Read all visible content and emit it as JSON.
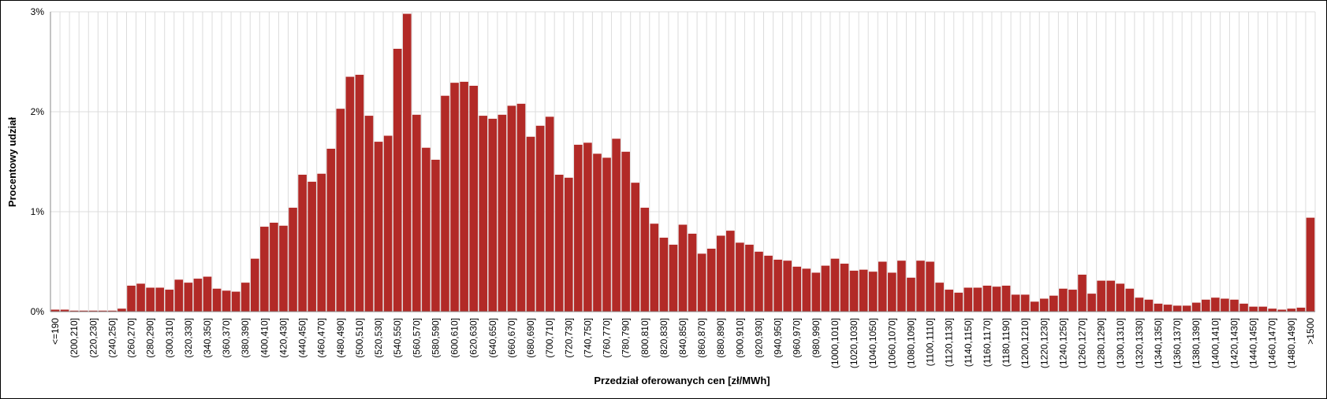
{
  "chart_data": {
    "type": "bar",
    "x_label": "Przedział oferowanych cen [zł/MWh]",
    "y_label": "Procentowy udział",
    "color": "#b22a27",
    "grid": true,
    "ylim": [
      0,
      3
    ],
    "yticks": [
      {
        "value": 0,
        "label": "0%"
      },
      {
        "value": 1,
        "label": "1%"
      },
      {
        "value": 2,
        "label": "2%"
      },
      {
        "value": 3,
        "label": "3%"
      }
    ],
    "categories": [
      "<=190",
      null,
      "(200,210]",
      null,
      "(220,230]",
      null,
      "(240,250]",
      null,
      "(260,270]",
      null,
      "(280,290]",
      null,
      "(300,310]",
      null,
      "(320,330]",
      null,
      "(340,350]",
      null,
      "(360,370]",
      null,
      "(380,390]",
      null,
      "(400,410]",
      null,
      "(420,430]",
      null,
      "(440,450]",
      null,
      "(460,470]",
      null,
      "(480,490]",
      null,
      "(500,510]",
      null,
      "(520,530]",
      null,
      "(540,550]",
      null,
      "(560,570]",
      null,
      "(580,590]",
      null,
      "(600,610]",
      null,
      "(620,630]",
      null,
      "(640,650]",
      null,
      "(660,670]",
      null,
      "(680,690]",
      null,
      "(700,710]",
      null,
      "(720,730]",
      null,
      "(740,750]",
      null,
      "(760,770]",
      null,
      "(780,790]",
      null,
      "(800,810]",
      null,
      "(820,830]",
      null,
      "(840,850]",
      null,
      "(860,870]",
      null,
      "(880,890]",
      null,
      "(900,910]",
      null,
      "(920,930]",
      null,
      "(940,950]",
      null,
      "(960,970]",
      null,
      "(980,990]",
      null,
      "(1000,1010]",
      null,
      "(1020,1030]",
      null,
      "(1040,1050]",
      null,
      "(1060,1070]",
      null,
      "(1080,1090]",
      null,
      "(1100,1110]",
      null,
      "(1120,1130]",
      null,
      "(1140,1150]",
      null,
      "(1160,1170]",
      null,
      "(1180,1190]",
      null,
      "(1200,1210]",
      null,
      "(1220,1230]",
      null,
      "(1240,1250]",
      null,
      "(1260,1270]",
      null,
      "(1280,1290]",
      null,
      "(1300,1310]",
      null,
      "(1320,1330]",
      null,
      "(1340,1350]",
      null,
      "(1360,1370]",
      null,
      "(1380,1390]",
      null,
      "(1400,1410]",
      null,
      "(1420,1430]",
      null,
      "(1440,1450]",
      null,
      "(1460,1470]",
      null,
      "(1480,1490]",
      null,
      ">1500"
    ],
    "values": [
      0.02,
      0.02,
      0.01,
      0.01,
      0.01,
      0.01,
      0.01,
      0.03,
      0.26,
      0.28,
      0.24,
      0.24,
      0.22,
      0.32,
      0.29,
      0.33,
      0.35,
      0.23,
      0.21,
      0.2,
      0.29,
      0.53,
      0.85,
      0.89,
      0.86,
      1.04,
      1.37,
      1.3,
      1.38,
      1.63,
      2.03,
      2.35,
      2.37,
      1.96,
      1.7,
      1.76,
      2.63,
      2.98,
      1.97,
      1.64,
      1.52,
      2.16,
      2.29,
      2.3,
      2.26,
      1.96,
      1.93,
      1.97,
      2.06,
      2.08,
      1.75,
      1.86,
      1.95,
      1.37,
      1.34,
      1.67,
      1.69,
      1.58,
      1.54,
      1.73,
      1.6,
      1.29,
      1.04,
      0.88,
      0.74,
      0.67,
      0.87,
      0.78,
      0.58,
      0.63,
      0.76,
      0.81,
      0.69,
      0.67,
      0.6,
      0.56,
      0.52,
      0.51,
      0.45,
      0.43,
      0.39,
      0.46,
      0.53,
      0.48,
      0.41,
      0.42,
      0.4,
      0.5,
      0.39,
      0.51,
      0.34,
      0.51,
      0.5,
      0.29,
      0.22,
      0.19,
      0.24,
      0.24,
      0.26,
      0.25,
      0.26,
      0.17,
      0.17,
      0.1,
      0.13,
      0.16,
      0.23,
      0.22,
      0.37,
      0.18,
      0.31,
      0.31,
      0.28,
      0.23,
      0.14,
      0.12,
      0.08,
      0.07,
      0.06,
      0.06,
      0.09,
      0.12,
      0.14,
      0.13,
      0.12,
      0.08,
      0.05,
      0.05,
      0.03,
      0.02,
      0.03,
      0.04,
      0.94
    ]
  }
}
